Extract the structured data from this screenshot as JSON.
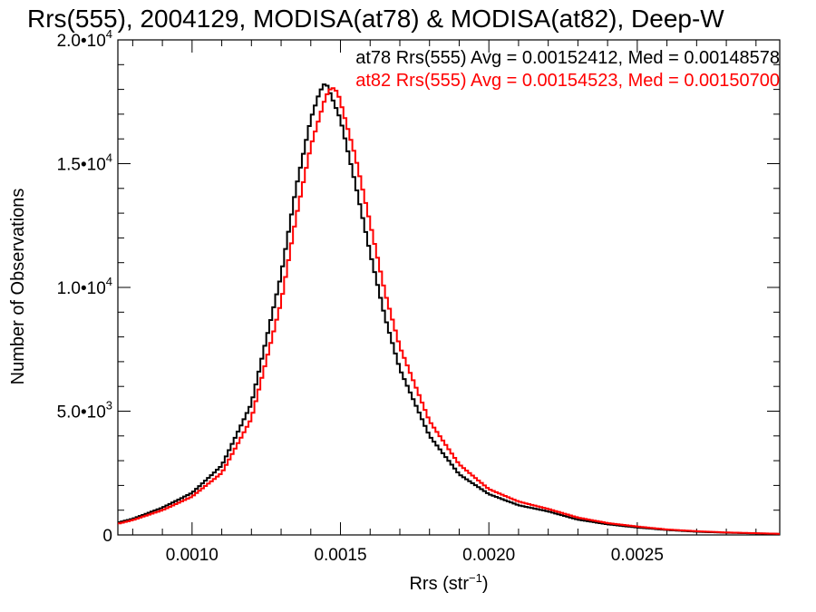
{
  "chart_data": {
    "type": "line",
    "title": "Rrs(555), 2004129, MODISA(at78) & MODISA(at82), Deep-W",
    "xlabel": "Rrs (str",
    "xlabel_sup": "−1",
    "xlabel_end": ")",
    "ylabel": "Number of Observations",
    "xlim": [
      0.00075,
      0.00298
    ],
    "ylim": [
      0,
      20000
    ],
    "xticks": [
      {
        "value": 0.001,
        "label": "0.0010"
      },
      {
        "value": 0.0015,
        "label": "0.0015"
      },
      {
        "value": 0.002,
        "label": "0.0020"
      },
      {
        "value": 0.0025,
        "label": "0.0025"
      }
    ],
    "yticks": [
      {
        "value": 0,
        "mant": "0",
        "exp": ""
      },
      {
        "value": 5000,
        "mant": "5.0•10",
        "exp": "3"
      },
      {
        "value": 10000,
        "mant": "1.0•10",
        "exp": "4"
      },
      {
        "value": 15000,
        "mant": "1.5•10",
        "exp": "4"
      },
      {
        "value": 20000,
        "mant": "2.0•10",
        "exp": "4"
      }
    ],
    "grid": false,
    "legend_position": "top-right",
    "series": [
      {
        "name": "at78 Rrs(555) Avg = 0.00152412, Med = 0.00148578",
        "color": "#000000",
        "x": [
          0.00075,
          0.0008,
          0.0009,
          0.001,
          0.0011,
          0.0012,
          0.0013,
          0.00135,
          0.0014,
          0.00143,
          0.00145,
          0.00147,
          0.0015,
          0.00155,
          0.0016,
          0.00165,
          0.0017,
          0.0018,
          0.0019,
          0.002,
          0.0021,
          0.0022,
          0.0023,
          0.0024,
          0.0025,
          0.0026,
          0.0027,
          0.0028,
          0.00298
        ],
        "y": [
          500,
          650,
          1100,
          1700,
          2800,
          5300,
          10500,
          14000,
          16800,
          17900,
          18300,
          17700,
          16800,
          14200,
          11400,
          8800,
          6700,
          4000,
          2450,
          1650,
          1200,
          950,
          620,
          430,
          300,
          200,
          130,
          90,
          40
        ]
      },
      {
        "name": "at82 Rrs(555) Avg = 0.00154523, Med = 0.00150700",
        "color": "#ff0000",
        "x": [
          0.00075,
          0.0008,
          0.0009,
          0.001,
          0.0011,
          0.0012,
          0.0013,
          0.00135,
          0.0014,
          0.00145,
          0.00147,
          0.00149,
          0.0015,
          0.00155,
          0.0016,
          0.00165,
          0.0017,
          0.0018,
          0.0019,
          0.002,
          0.0021,
          0.0022,
          0.0023,
          0.0024,
          0.0025,
          0.0026,
          0.0027,
          0.0028,
          0.00298
        ],
        "y": [
          450,
          600,
          1000,
          1550,
          2500,
          4700,
          9400,
          12800,
          15700,
          17700,
          18100,
          17900,
          17500,
          15300,
          12600,
          9800,
          7600,
          4600,
          2850,
          1850,
          1350,
          1050,
          700,
          480,
          340,
          220,
          150,
          100,
          45
        ]
      }
    ]
  }
}
